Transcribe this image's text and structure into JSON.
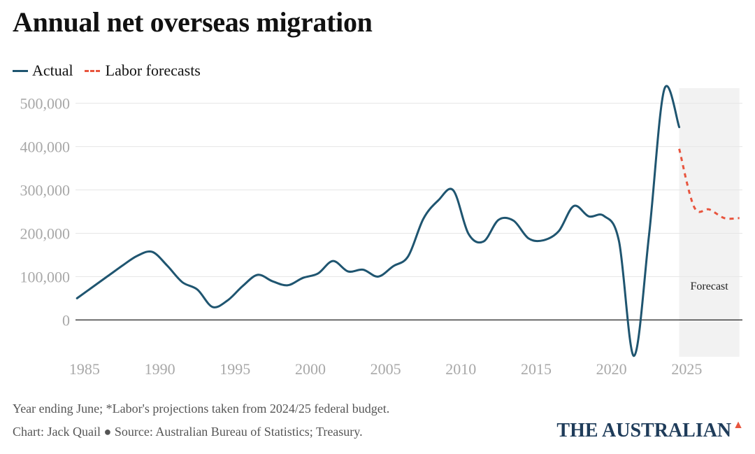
{
  "title": "Annual net overseas migration",
  "legend": {
    "actual": "Actual",
    "forecast": "Labor forecasts"
  },
  "footer": {
    "note": "Year ending June; *Labor's projections taken from 2024/25 federal budget.",
    "credit": "Chart: Jack Quail ● Source: Australian Bureau of Statistics; Treasury."
  },
  "brand": "THE AUSTRALIAN",
  "colors": {
    "actual": "#1f5570",
    "forecast": "#e8553e",
    "shade": "#f2f2f2",
    "grid": "#e6e6e6",
    "tick": "#a8a8a8"
  },
  "chart_data": {
    "type": "line",
    "title": "Annual net overseas migration",
    "xlabel": "",
    "ylabel": "",
    "xlim": [
      1984.4,
      2028.7
    ],
    "ylim": [
      -85000,
      535000
    ],
    "x_ticks": [
      1985,
      1990,
      1995,
      2000,
      2005,
      2010,
      2015,
      2020,
      2025
    ],
    "y_ticks": [
      0,
      100000,
      200000,
      300000,
      400000,
      500000
    ],
    "y_tick_labels": [
      "0",
      "100,000",
      "200,000",
      "300,000",
      "400,000",
      "500,000"
    ],
    "forecast_region": {
      "start": 2024.5,
      "end": 2028.5,
      "label": "Forecast"
    },
    "legend_position": "top-left",
    "grid": true,
    "series": [
      {
        "name": "Actual",
        "style": "solid",
        "x": [
          1984.5,
          1985.5,
          1986.5,
          1987.5,
          1988.5,
          1989.5,
          1990.5,
          1991.5,
          1992.5,
          1993.5,
          1994.5,
          1995.5,
          1996.5,
          1997.5,
          1998.5,
          1999.5,
          2000.5,
          2001.5,
          2002.5,
          2003.5,
          2004.5,
          2005.5,
          2006.5,
          2007.5,
          2008.5,
          2009.5,
          2010.5,
          2011.5,
          2012.5,
          2013.5,
          2014.5,
          2015.5,
          2016.5,
          2017.5,
          2018.5,
          2019.5,
          2020.5,
          2021.5,
          2022.5,
          2023.5,
          2024.5
        ],
        "y": [
          50000,
          75000,
          100000,
          125000,
          148000,
          157000,
          125000,
          87000,
          70000,
          30000,
          45000,
          78000,
          104000,
          89000,
          80000,
          97000,
          107000,
          136000,
          112000,
          116000,
          100000,
          124000,
          147000,
          233000,
          276000,
          299000,
          199000,
          181000,
          231000,
          229000,
          188000,
          184000,
          205000,
          263000,
          239000,
          240000,
          182000,
          -83000,
          197000,
          531000,
          445000
        ]
      },
      {
        "name": "Labor forecasts",
        "style": "dashed",
        "x": [
          2024.5,
          2025.5,
          2026.5,
          2027.5,
          2028.5
        ],
        "y": [
          395000,
          260000,
          255000,
          235000,
          235000
        ]
      }
    ]
  }
}
